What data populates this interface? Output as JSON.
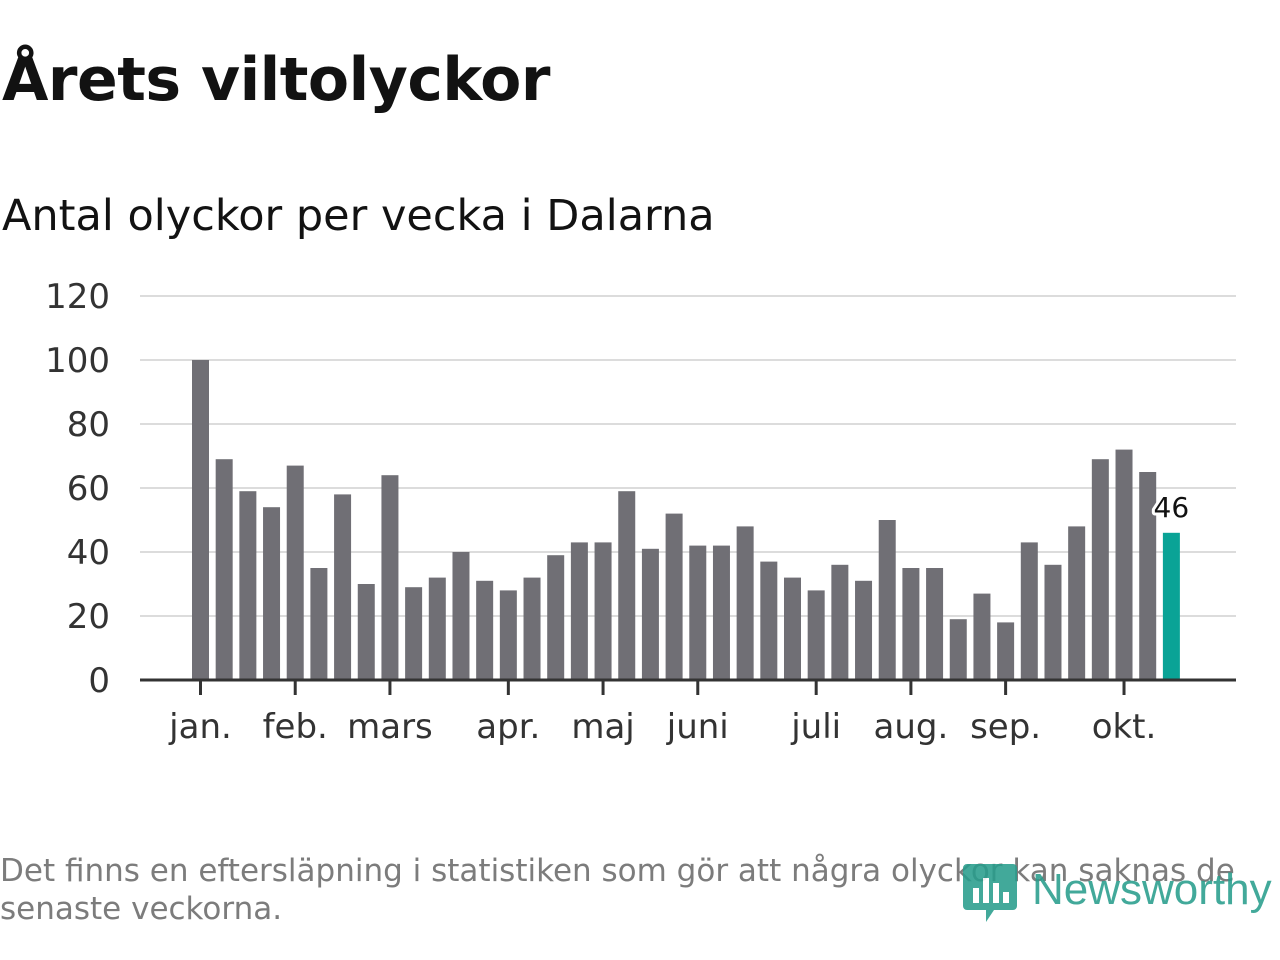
{
  "header": {
    "title": "Årets viltolyckor",
    "subtitle": "Antal olyckor per vecka i Dalarna"
  },
  "footer": {
    "note": "Det finns en eftersläpning i statistiken som gör att några olyckor kan saknas de senaste veckorna."
  },
  "logo": {
    "text": "Newsworthy",
    "icon": "newsworthy-logo-icon"
  },
  "colors": {
    "bar": "#706f75",
    "highlight": "#0aa396",
    "grid": "#dcdcdc",
    "axis": "#333333",
    "tick_text": "#333333",
    "brand": "#289e8d"
  },
  "chart_data": {
    "type": "bar",
    "title": "Årets viltolyckor",
    "subtitle": "Antal olyckor per vecka i Dalarna",
    "xlabel": "",
    "ylabel": "",
    "ylim": [
      0,
      120
    ],
    "yticks": [
      0,
      20,
      40,
      60,
      80,
      100,
      120
    ],
    "grid": true,
    "values": [
      100,
      69,
      59,
      54,
      67,
      35,
      58,
      30,
      64,
      29,
      32,
      40,
      31,
      28,
      32,
      39,
      43,
      43,
      59,
      41,
      52,
      42,
      42,
      48,
      37,
      32,
      28,
      36,
      31,
      50,
      35,
      35,
      19,
      27,
      18,
      43,
      36,
      48,
      69,
      72,
      65,
      46
    ],
    "highlight_index": 41,
    "highlight_label": "46",
    "months": [
      {
        "label": "jan.",
        "week": 0
      },
      {
        "label": "feb.",
        "week": 4
      },
      {
        "label": "mars",
        "week": 8
      },
      {
        "label": "apr.",
        "week": 13
      },
      {
        "label": "maj",
        "week": 17
      },
      {
        "label": "juni",
        "week": 21
      },
      {
        "label": "juli",
        "week": 26
      },
      {
        "label": "aug.",
        "week": 30
      },
      {
        "label": "sep.",
        "week": 34
      },
      {
        "label": "okt.",
        "week": 39
      }
    ]
  }
}
